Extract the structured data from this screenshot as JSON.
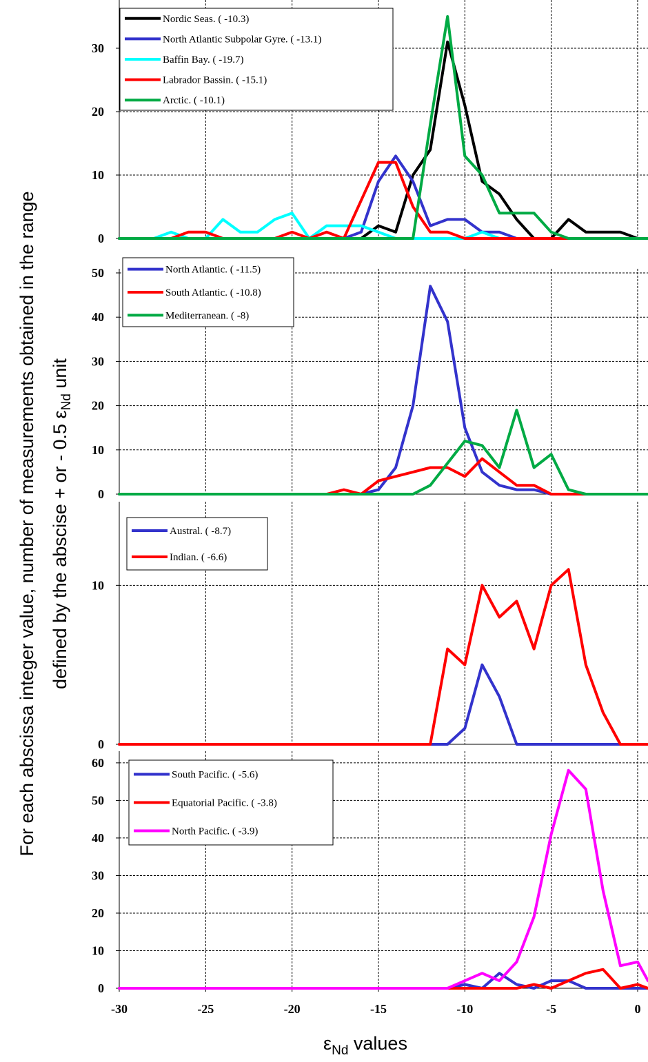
{
  "y_axis_label": {
    "line1": "For each abscissa integer value, number of measurements obtained in the range",
    "line2_prefix": "defined by the abscise + or - 0.5 ",
    "line2_eps": "ε",
    "line2_sub": "Nd",
    "line2_suffix": " unit"
  },
  "x_axis_label": {
    "eps": "ε",
    "sub": "Nd",
    "suffix": " values"
  },
  "chart_data": [
    {
      "type": "line",
      "xlim": [
        -30,
        0.6
      ],
      "ylim": [
        0,
        35
      ],
      "yticks": [
        0,
        10,
        20,
        30
      ],
      "xticks": [
        -30,
        -25,
        -20,
        -15,
        -10,
        -5,
        0
      ],
      "grid": true,
      "legend_placement": "top-left",
      "series": [
        {
          "name": "Nordic Seas. ( -10.3)",
          "color": "#000000",
          "x": [
            -30,
            -29,
            -28,
            -27,
            -26,
            -25,
            -24,
            -23,
            -22,
            -21,
            -20,
            -19,
            -18,
            -17,
            -16,
            -15,
            -14,
            -13,
            -12,
            -11,
            -10,
            -9,
            -8,
            -7,
            -6,
            -5,
            -4,
            -3,
            -2,
            -1,
            0,
            0.6
          ],
          "y": [
            0,
            0,
            0,
            0,
            0,
            0,
            0,
            0,
            0,
            0,
            0,
            0,
            0,
            0,
            0,
            2,
            1,
            10,
            14,
            31,
            21,
            9,
            7,
            3,
            0,
            0,
            3,
            1,
            1,
            1,
            0,
            0
          ]
        },
        {
          "name": "North Atlantic Subpolar Gyre. (  -13.1)",
          "color": "#3333cc",
          "x": [
            -30,
            -29,
            -28,
            -27,
            -26,
            -25,
            -24,
            -23,
            -22,
            -21,
            -20,
            -19,
            -18,
            -17,
            -16,
            -15,
            -14,
            -13,
            -12,
            -11,
            -10,
            -9,
            -8,
            -7,
            -6,
            -5,
            -4,
            -3,
            -2,
            -1,
            0,
            0.6
          ],
          "y": [
            0,
            0,
            0,
            0,
            0,
            0,
            0,
            0,
            0,
            0,
            0,
            0,
            0,
            0,
            1,
            9,
            13,
            9,
            2,
            3,
            3,
            1,
            1,
            0,
            0,
            0,
            0,
            0,
            0,
            0,
            0,
            0
          ]
        },
        {
          "name": "Baffin Bay. ( -19.7)",
          "color": "#00ffff",
          "x": [
            -30,
            -29,
            -28,
            -27,
            -26,
            -25,
            -24,
            -23,
            -22,
            -21,
            -20,
            -19,
            -18,
            -17,
            -16,
            -15,
            -14,
            -13,
            -12,
            -11,
            -10,
            -9,
            -8,
            -7,
            -6,
            -5,
            -4,
            -3,
            -2,
            -1,
            0,
            0.6
          ],
          "y": [
            0,
            0,
            0,
            1,
            0,
            0,
            3,
            1,
            1,
            3,
            4,
            0,
            2,
            2,
            2,
            1,
            0,
            0,
            0,
            0,
            0,
            1,
            0,
            0,
            0,
            0,
            0,
            0,
            0,
            0,
            0,
            0
          ]
        },
        {
          "name": "Labrador Bassin. ( -15.1)",
          "color": "#ff0000",
          "x": [
            -30,
            -29,
            -28,
            -27,
            -26,
            -25,
            -24,
            -23,
            -22,
            -21,
            -20,
            -19,
            -18,
            -17,
            -16,
            -15,
            -14,
            -13,
            -12,
            -11,
            -10,
            -9,
            -8,
            -7,
            -6,
            -5,
            -4,
            -3,
            -2,
            -1,
            0,
            0.6
          ],
          "y": [
            0,
            0,
            0,
            0,
            1,
            1,
            0,
            0,
            0,
            0,
            1,
            0,
            1,
            0,
            6,
            12,
            12,
            5,
            1,
            1,
            0,
            0,
            0,
            0,
            0,
            0,
            0,
            0,
            0,
            0,
            0,
            0
          ]
        },
        {
          "name": "Arctic. ( -10.1)",
          "color": "#00aa44",
          "x": [
            -30,
            -29,
            -28,
            -27,
            -26,
            -25,
            -24,
            -23,
            -22,
            -21,
            -20,
            -19,
            -18,
            -17,
            -16,
            -15,
            -14,
            -13,
            -12,
            -11,
            -10,
            -9,
            -8,
            -7,
            -6,
            -5,
            -4,
            -3,
            -2,
            -1,
            0,
            0.6
          ],
          "y": [
            0,
            0,
            0,
            0,
            0,
            0,
            0,
            0,
            0,
            0,
            0,
            0,
            0,
            0,
            0,
            0,
            0,
            0,
            18,
            35,
            13,
            10,
            4,
            4,
            4,
            1,
            0,
            0,
            0,
            0,
            0,
            0
          ]
        }
      ]
    },
    {
      "type": "line",
      "xlim": [
        -30,
        0.6
      ],
      "ylim": [
        0,
        50
      ],
      "yticks": [
        0,
        10,
        20,
        30,
        40,
        50
      ],
      "xticks": [
        -30,
        -25,
        -20,
        -15,
        -10,
        -5,
        0
      ],
      "grid": true,
      "legend_placement": "top-left",
      "series": [
        {
          "name": "North Atlantic. ( -11.5)",
          "color": "#3333cc",
          "x": [
            -30,
            -29,
            -28,
            -27,
            -26,
            -25,
            -24,
            -23,
            -22,
            -21,
            -20,
            -19,
            -18,
            -17,
            -16,
            -15,
            -14,
            -13,
            -12,
            -11,
            -10,
            -9,
            -8,
            -7,
            -6,
            -5,
            -4,
            -3,
            -2,
            -1,
            0,
            0.6
          ],
          "y": [
            0,
            0,
            0,
            0,
            0,
            0,
            0,
            0,
            0,
            0,
            0,
            0,
            0,
            0,
            0,
            1,
            6,
            20,
            47,
            39,
            15,
            5,
            2,
            1,
            1,
            0,
            0,
            0,
            0,
            0,
            0,
            0
          ]
        },
        {
          "name": "South Atlantic. ( -10.8)",
          "color": "#ff0000",
          "x": [
            -30,
            -29,
            -28,
            -27,
            -26,
            -25,
            -24,
            -23,
            -22,
            -21,
            -20,
            -19,
            -18,
            -17,
            -16,
            -15,
            -14,
            -13,
            -12,
            -11,
            -10,
            -9,
            -8,
            -7,
            -6,
            -5,
            -4,
            -3,
            -2,
            -1,
            0,
            0.6
          ],
          "y": [
            0,
            0,
            0,
            0,
            0,
            0,
            0,
            0,
            0,
            0,
            0,
            0,
            0,
            1,
            0,
            3,
            4,
            5,
            6,
            6,
            4,
            8,
            5,
            2,
            2,
            0,
            0,
            0,
            0,
            0,
            0,
            0
          ]
        },
        {
          "name": "Mediterranean. ( -8)",
          "color": "#00aa44",
          "x": [
            -30,
            -29,
            -28,
            -27,
            -26,
            -25,
            -24,
            -23,
            -22,
            -21,
            -20,
            -19,
            -18,
            -17,
            -16,
            -15,
            -14,
            -13,
            -12,
            -11,
            -10,
            -9,
            -8,
            -7,
            -6,
            -5,
            -4,
            -3,
            -2,
            -1,
            0,
            0.6
          ],
          "y": [
            0,
            0,
            0,
            0,
            0,
            0,
            0,
            0,
            0,
            0,
            0,
            0,
            0,
            0,
            0,
            0,
            0,
            0,
            2,
            7,
            12,
            11,
            6,
            19,
            6,
            9,
            1,
            0,
            0,
            0,
            0,
            0
          ]
        }
      ]
    },
    {
      "type": "line",
      "xlim": [
        -30,
        0.6
      ],
      "ylim": [
        0,
        15
      ],
      "yticks": [
        0,
        10
      ],
      "xticks": [
        -30,
        -25,
        -20,
        -15,
        -10,
        -5,
        0
      ],
      "grid": true,
      "legend_placement": "top-left",
      "series": [
        {
          "name": "Austral. ( -8.7)",
          "color": "#3333cc",
          "x": [
            -30,
            -29,
            -28,
            -27,
            -26,
            -25,
            -24,
            -23,
            -22,
            -21,
            -20,
            -19,
            -18,
            -17,
            -16,
            -15,
            -14,
            -13,
            -12,
            -11,
            -10,
            -9,
            -8,
            -7,
            -6,
            -5,
            -4,
            -3,
            -2,
            -1,
            0,
            0.6
          ],
          "y": [
            0,
            0,
            0,
            0,
            0,
            0,
            0,
            0,
            0,
            0,
            0,
            0,
            0,
            0,
            0,
            0,
            0,
            0,
            0,
            0,
            1,
            5,
            3,
            0,
            0,
            0,
            0,
            0,
            0,
            0,
            0,
            0
          ]
        },
        {
          "name": "Indian. ( -6.6)",
          "color": "#ff0000",
          "x": [
            -30,
            -29,
            -28,
            -27,
            -26,
            -25,
            -24,
            -23,
            -22,
            -21,
            -20,
            -19,
            -18,
            -17,
            -16,
            -15,
            -14,
            -13,
            -12,
            -11,
            -10,
            -9,
            -8,
            -7,
            -6,
            -5,
            -4,
            -3,
            -2,
            -1,
            0,
            0.6
          ],
          "y": [
            0,
            0,
            0,
            0,
            0,
            0,
            0,
            0,
            0,
            0,
            0,
            0,
            0,
            0,
            0,
            0,
            0,
            0,
            0,
            6,
            5,
            10,
            8,
            9,
            6,
            10,
            11,
            5,
            2,
            0,
            0,
            0
          ]
        }
      ]
    },
    {
      "type": "line",
      "xlim": [
        -30,
        0.6
      ],
      "ylim": [
        0,
        62
      ],
      "yticks": [
        0,
        10,
        20,
        30,
        40,
        50,
        60
      ],
      "xticks": [
        -30,
        -25,
        -20,
        -15,
        -10,
        -5,
        0
      ],
      "xticklabels": [
        "-30",
        "-25",
        "-20",
        "-15",
        "-10",
        "-5",
        "0"
      ],
      "grid": true,
      "legend_placement": "top-left",
      "series": [
        {
          "name": "South Pacific. ( -5.6)",
          "color": "#3333cc",
          "x": [
            -30,
            -29,
            -28,
            -27,
            -26,
            -25,
            -24,
            -23,
            -22,
            -21,
            -20,
            -19,
            -18,
            -17,
            -16,
            -15,
            -14,
            -13,
            -12,
            -11,
            -10,
            -9,
            -8,
            -7,
            -6,
            -5,
            -4,
            -3,
            -2,
            -1,
            0,
            0.6
          ],
          "y": [
            0,
            0,
            0,
            0,
            0,
            0,
            0,
            0,
            0,
            0,
            0,
            0,
            0,
            0,
            0,
            0,
            0,
            0,
            0,
            0,
            1,
            0,
            4,
            1,
            0,
            2,
            2,
            0,
            0,
            0,
            0,
            0
          ]
        },
        {
          "name": "Equatorial Pacific. ( -3.8)",
          "color": "#ff0000",
          "x": [
            -30,
            -29,
            -28,
            -27,
            -26,
            -25,
            -24,
            -23,
            -22,
            -21,
            -20,
            -19,
            -18,
            -17,
            -16,
            -15,
            -14,
            -13,
            -12,
            -11,
            -10,
            -9,
            -8,
            -7,
            -6,
            -5,
            -4,
            -3,
            -2,
            -1,
            0,
            0.6
          ],
          "y": [
            0,
            0,
            0,
            0,
            0,
            0,
            0,
            0,
            0,
            0,
            0,
            0,
            0,
            0,
            0,
            0,
            0,
            0,
            0,
            0,
            0,
            0,
            0,
            0,
            1,
            0,
            2,
            4,
            5,
            0,
            1,
            0
          ]
        },
        {
          "name": "North Pacific. ( -3.9)",
          "color": "#ff00ff",
          "x": [
            -30,
            -29,
            -28,
            -27,
            -26,
            -25,
            -24,
            -23,
            -22,
            -21,
            -20,
            -19,
            -18,
            -17,
            -16,
            -15,
            -14,
            -13,
            -12,
            -11,
            -10,
            -9,
            -8,
            -7,
            -6,
            -5,
            -4,
            -3,
            -2,
            -1,
            0,
            0.6
          ],
          "y": [
            0,
            0,
            0,
            0,
            0,
            0,
            0,
            0,
            0,
            0,
            0,
            0,
            0,
            0,
            0,
            0,
            0,
            0,
            0,
            0,
            2,
            4,
            2,
            7,
            19,
            41,
            58,
            53,
            26,
            6,
            7,
            2
          ]
        }
      ]
    }
  ]
}
